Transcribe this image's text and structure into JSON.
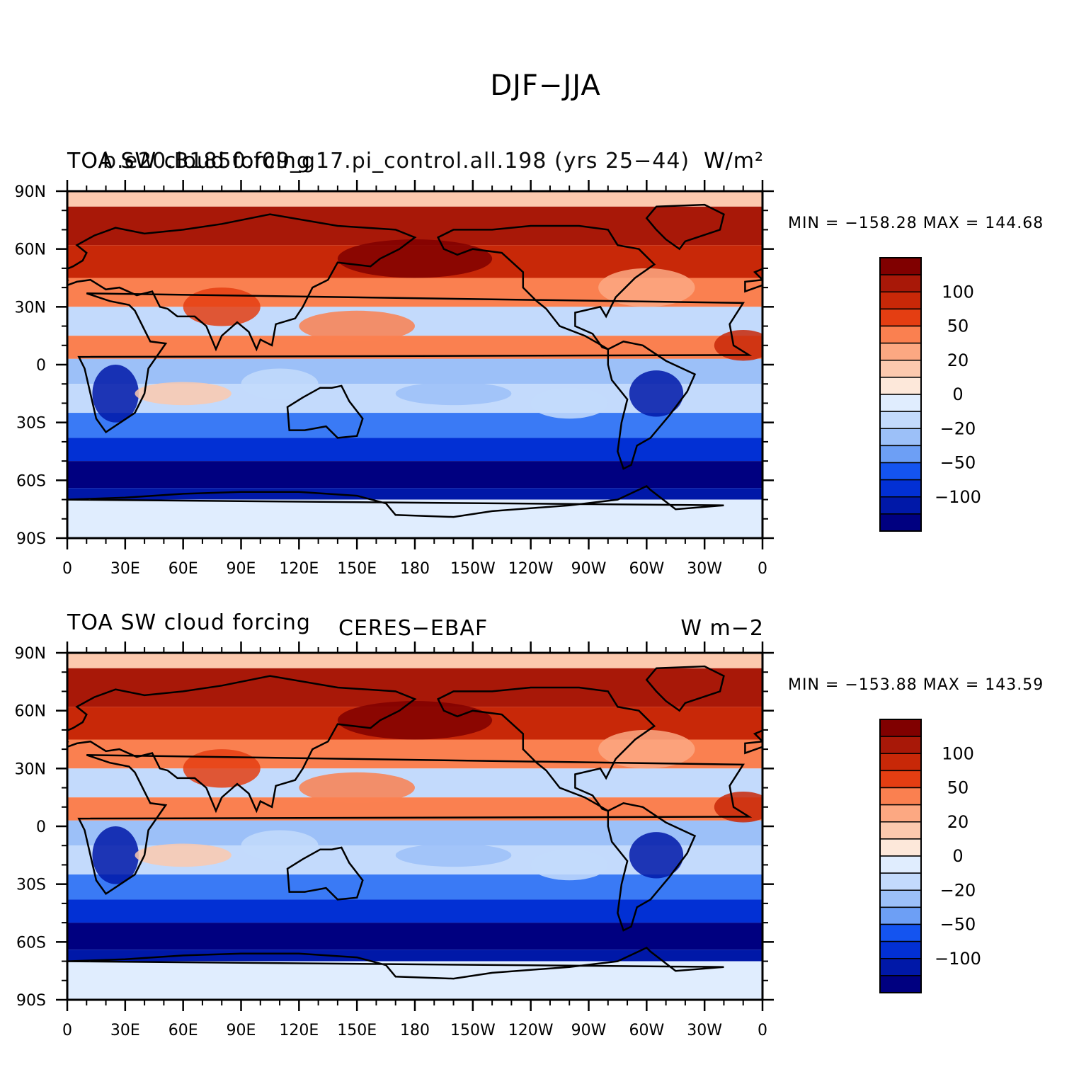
{
  "figure": {
    "title": "DJF−JJA"
  },
  "panels": [
    {
      "id": "model",
      "left_title": "TOA SW cloud forcing",
      "center_title": "b.e20.B1850.f09_g17.pi_control.all.198 (yrs 25−44)",
      "units": "W/m²",
      "stats": "MIN = −158.28  MAX = 144.68"
    },
    {
      "id": "obs",
      "left_title": "TOA SW cloud forcing",
      "center_title": "CERES−EBAF",
      "units": "W m−2",
      "stats": "MIN = −153.88  MAX = 143.59"
    }
  ],
  "chart_data": {
    "type": "heatmap",
    "projection": "cylindrical equidistant",
    "x_ticks": [
      "0",
      "30E",
      "60E",
      "90E",
      "120E",
      "150E",
      "180",
      "150W",
      "120W",
      "90W",
      "60W",
      "30W",
      "0"
    ],
    "y_ticks": [
      "90N",
      "60N",
      "30N",
      "0",
      "30S",
      "60S",
      "90S"
    ],
    "xlim": [
      0,
      360
    ],
    "ylim": [
      -90,
      90
    ],
    "colorbar": {
      "levels": [
        -120,
        -100,
        -80,
        -60,
        -50,
        -40,
        -30,
        -20,
        -10,
        0,
        10,
        20,
        30,
        40,
        50,
        60,
        80,
        100,
        120
      ],
      "tick_labels": [
        "100",
        "50",
        "20",
        "0",
        "−20",
        "−50",
        "−100"
      ],
      "colors": [
        "#000080",
        "#0018a8",
        "#0230d4",
        "#1454f0",
        "#3a7af5",
        "#6d9ff5",
        "#9cc0f8",
        "#c3dafc",
        "#e0edfe",
        "#fde8da",
        "#fcc9ae",
        "#fca882",
        "#fa8050",
        "#f25d2c",
        "#e43e12",
        "#c82808",
        "#a81808",
        "#800000"
      ]
    },
    "zonal_bands": [
      {
        "lat_top": 90,
        "lat_bottom": 82,
        "value": 15
      },
      {
        "lat_top": 82,
        "lat_bottom": 62,
        "value": 85
      },
      {
        "lat_top": 62,
        "lat_bottom": 45,
        "value": 70
      },
      {
        "lat_top": 45,
        "lat_bottom": 30,
        "value": 30
      },
      {
        "lat_top": 30,
        "lat_bottom": 15,
        "value": -12
      },
      {
        "lat_top": 15,
        "lat_bottom": 3,
        "value": 35
      },
      {
        "lat_top": 3,
        "lat_bottom": -10,
        "value": -30
      },
      {
        "lat_top": -10,
        "lat_bottom": -25,
        "value": -15
      },
      {
        "lat_top": -25,
        "lat_bottom": -38,
        "value": -45
      },
      {
        "lat_top": -38,
        "lat_bottom": -50,
        "value": -80
      },
      {
        "lat_top": -50,
        "lat_bottom": -64,
        "value": -110
      },
      {
        "lat_top": -64,
        "lat_bottom": -70,
        "value": -90
      },
      {
        "lat_top": -70,
        "lat_bottom": -90,
        "value": -8
      }
    ]
  }
}
